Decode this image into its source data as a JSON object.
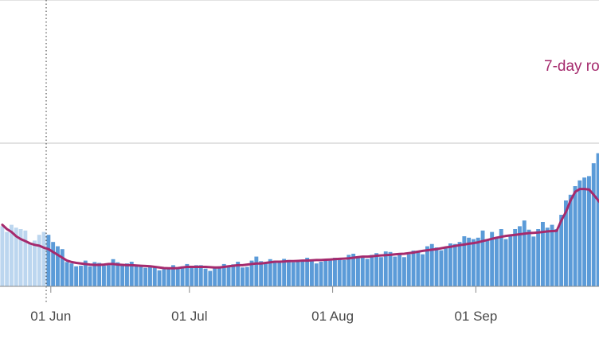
{
  "chart_data": {
    "type": "bar",
    "x_ticks": [
      "01 Jun",
      "01 Jul",
      "01 Aug",
      "01 Sep"
    ],
    "legend": {
      "rolling_label": "7-day ro",
      "placement": "top-right (cropped)"
    },
    "x_start": "2020-05-21",
    "y_range": [
      0,
      1000
    ],
    "y_gridlines": [
      500,
      1000
    ],
    "grid": true,
    "annotation_line_date": "2020-05-31",
    "colors": {
      "bar_faded": "#bcd6ef",
      "bar": "#5b9bd8",
      "rolling": "#a52a6d",
      "grid": "#d0d0d0",
      "axis": "#888888"
    },
    "values": [
      210,
      190,
      215,
      205,
      200,
      195,
      150,
      160,
      180,
      190,
      180,
      155,
      140,
      130,
      85,
      80,
      70,
      72,
      90,
      70,
      85,
      82,
      72,
      74,
      95,
      84,
      76,
      80,
      86,
      72,
      72,
      65,
      70,
      66,
      56,
      60,
      62,
      74,
      65,
      70,
      78,
      65,
      74,
      74,
      62,
      54,
      66,
      70,
      78,
      72,
      77,
      86,
      66,
      68,
      90,
      104,
      88,
      82,
      95,
      90,
      88,
      96,
      92,
      84,
      88,
      90,
      100,
      94,
      80,
      86,
      94,
      90,
      100,
      96,
      92,
      110,
      114,
      104,
      106,
      96,
      110,
      116,
      102,
      122,
      120,
      104,
      112,
      102,
      112,
      125,
      125,
      112,
      140,
      148,
      136,
      126,
      138,
      150,
      148,
      155,
      175,
      170,
      165,
      170,
      195,
      165,
      190,
      168,
      200,
      165,
      180,
      200,
      210,
      230,
      198,
      174,
      200,
      225,
      205,
      215,
      200,
      250,
      300,
      320,
      350,
      370,
      380,
      385,
      430,
      465,
      436,
      450,
      420,
      320,
      240,
      200
    ],
    "rolling_avg": [
      215,
      200,
      190,
      175,
      165,
      158,
      150,
      145,
      142,
      135,
      130,
      120,
      110,
      100,
      90,
      85,
      82,
      80,
      78,
      76,
      75,
      75,
      76,
      78,
      78,
      76,
      75,
      74,
      74,
      73,
      72,
      71,
      70,
      68,
      66,
      64,
      63,
      63,
      64,
      66,
      68,
      68,
      68,
      68,
      68,
      67,
      66,
      66,
      68,
      70,
      72,
      74,
      74,
      76,
      78,
      80,
      80,
      82,
      84,
      86,
      86,
      87,
      88,
      88,
      89,
      90,
      90,
      91,
      92,
      92,
      93,
      94,
      95,
      96,
      97,
      98,
      100,
      102,
      104,
      104,
      105,
      107,
      108,
      109,
      110,
      112,
      113,
      114,
      116,
      118,
      121,
      124,
      126,
      128,
      130,
      133,
      136,
      138,
      141,
      144,
      146,
      149,
      151,
      154,
      158,
      162,
      166,
      170,
      173,
      176,
      178,
      180,
      182,
      184,
      186,
      187,
      188,
      190,
      192,
      193,
      194,
      230,
      260,
      300,
      330,
      340,
      340,
      338,
      320,
      300,
      280,
      260,
      240,
      220
    ]
  }
}
